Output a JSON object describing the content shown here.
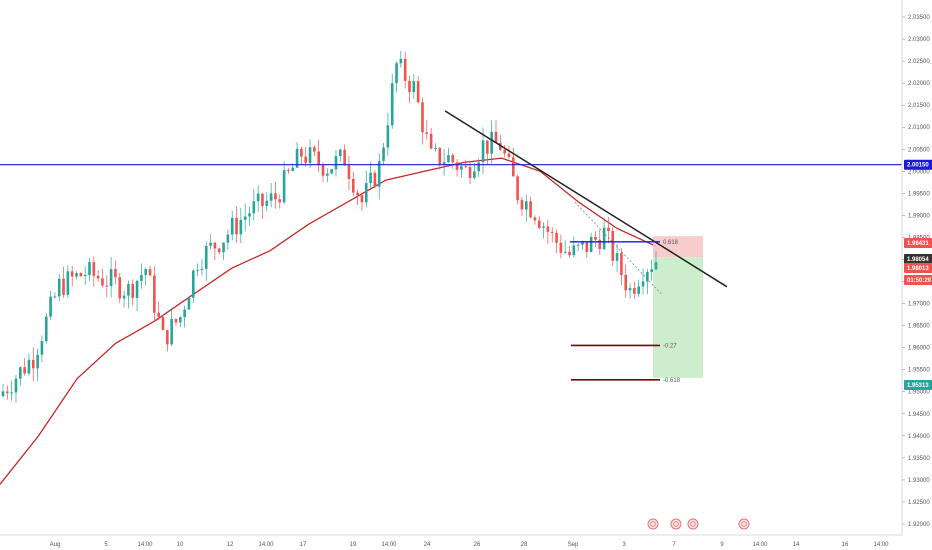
{
  "chart_data": {
    "type": "candlestick",
    "colors": {
      "up": "#26a69a",
      "down": "#ef5350",
      "ma": "#c62828",
      "horizontal_line": "#1a1ad8",
      "trendline": "#222222",
      "fib_level": "#6d0a0a",
      "stop_zone": "#f7c6c6",
      "target_zone": "#c8ecc8"
    },
    "y_axis": {
      "min": 1.9175,
      "max": 2.0375,
      "ticks": [
        "2.03500",
        "2.03000",
        "2.02500",
        "2.02000",
        "2.01500",
        "2.01000",
        "2.00500",
        "2.00000",
        "1.99500",
        "1.99000",
        "1.98500",
        "1.98000",
        "1.97500",
        "1.97000",
        "1.96500",
        "1.96000",
        "1.95500",
        "1.95000",
        "1.94500",
        "1.94000",
        "1.93500",
        "1.93000",
        "1.92500",
        "1.92000"
      ]
    },
    "x_axis": {
      "labels": [
        "Aug",
        "5",
        "14:00",
        "10",
        "12",
        "14:00",
        "17",
        "19",
        "14:00",
        "24",
        "26",
        "28",
        "Sep",
        "3",
        "7",
        "9",
        "14:00",
        "14",
        "16",
        "14:00"
      ]
    },
    "horizontal_line": {
      "price": 2.0015,
      "label": "2.00150"
    },
    "price_tags": [
      {
        "label": "1.98431",
        "price": 1.98431,
        "color": "#ef5350"
      },
      {
        "label": "1.98054",
        "price": 1.98054,
        "color": "#333333"
      },
      {
        "label": "1.98013",
        "price": 1.98013,
        "color": "#ef5350"
      },
      {
        "label": "01:50:29",
        "price": 1.978,
        "color": "#ef5350"
      },
      {
        "label": "1.95313",
        "price": 1.95313,
        "color": "#26a69a"
      }
    ],
    "fib_levels": [
      {
        "label": "0.618",
        "price": 1.984
      },
      {
        "label": "-0.27",
        "price": 1.9605
      },
      {
        "label": "-0.618",
        "price": 1.9527
      }
    ],
    "trade_zone": {
      "entry": 1.9805,
      "stop": 1.9853,
      "target": 1.95313
    },
    "trendline": {
      "start_price": 2.0137,
      "end_price": 1.9738
    },
    "candles_count": 152,
    "ma_anchor_prices": [
      1.929,
      1.94,
      1.953,
      1.961,
      1.966,
      1.972,
      1.978,
      1.982,
      1.988,
      1.993,
      1.998,
      2.0,
      2.002,
      2.003,
      2.0,
      1.993,
      1.987,
      1.983
    ]
  }
}
